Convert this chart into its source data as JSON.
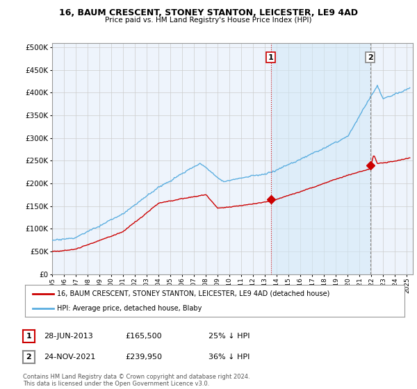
{
  "title": "16, BAUM CRESCENT, STONEY STANTON, LEICESTER, LE9 4AD",
  "subtitle": "Price paid vs. HM Land Registry's House Price Index (HPI)",
  "ytick_values": [
    0,
    50000,
    100000,
    150000,
    200000,
    250000,
    300000,
    350000,
    400000,
    450000,
    500000
  ],
  "ylim": [
    0,
    510000
  ],
  "xlim_start": 1995.0,
  "xlim_end": 2025.5,
  "hpi_color": "#5baee0",
  "hpi_fill_color": "#d0e8f8",
  "price_color": "#cc0000",
  "vline1_color": "#cc0000",
  "vline1_style": "dotted",
  "vline2_color": "#888888",
  "vline2_style": "dashed",
  "background_color": "#eef4fc",
  "grid_color": "#cccccc",
  "transaction1_x": 2013.49,
  "transaction1_y": 165500,
  "transaction2_x": 2021.9,
  "transaction2_y": 239950,
  "legend_label1": "16, BAUM CRESCENT, STONEY STANTON, LEICESTER, LE9 4AD (detached house)",
  "legend_label2": "HPI: Average price, detached house, Blaby",
  "note1_date": "28-JUN-2013",
  "note1_price": "£165,500",
  "note1_hpi": "25% ↓ HPI",
  "note2_date": "24-NOV-2021",
  "note2_price": "£239,950",
  "note2_hpi": "36% ↓ HPI",
  "footer": "Contains HM Land Registry data © Crown copyright and database right 2024.\nThis data is licensed under the Open Government Licence v3.0."
}
